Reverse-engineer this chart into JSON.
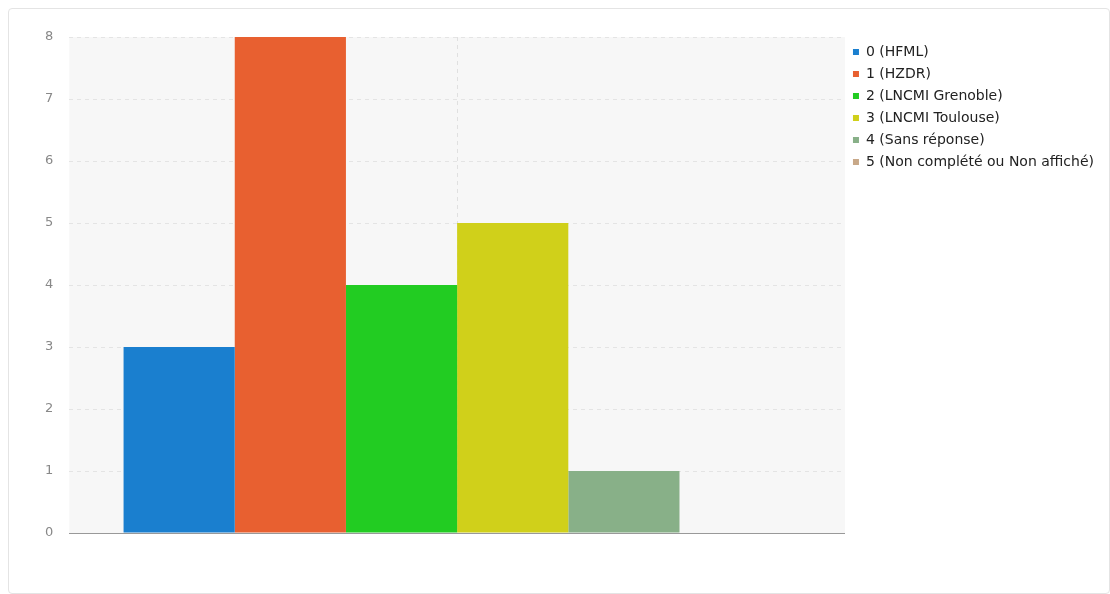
{
  "chart_data": {
    "type": "bar",
    "categories": [
      null
    ],
    "series": [
      {
        "name": "0 (HFML)",
        "color": "#1a7fcf",
        "values": [
          3
        ]
      },
      {
        "name": "1 (HZDR)",
        "color": "#e86030",
        "values": [
          8
        ]
      },
      {
        "name": "2 (LNCMI Grenoble)",
        "color": "#22cc22",
        "values": [
          4
        ]
      },
      {
        "name": "3 (LNCMI Toulouse)",
        "color": "#d0d01a",
        "values": [
          5
        ]
      },
      {
        "name": "4 (Sans réponse)",
        "color": "#88b088",
        "values": [
          1
        ]
      },
      {
        "name": "5 (Non complété ou Non affiché)",
        "color": "#c8a888",
        "values": [
          0
        ]
      }
    ],
    "ylim": [
      0,
      8
    ],
    "yticks": [
      0,
      1,
      2,
      3,
      4,
      5,
      6,
      7,
      8
    ],
    "grid": true,
    "legend": "top right"
  }
}
